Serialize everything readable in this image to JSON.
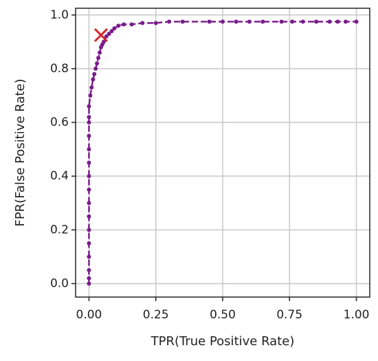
{
  "chart_data": {
    "type": "line",
    "x_label": "TPR(True Positive Rate)",
    "y_label": "FPR(False Positive Rate)",
    "xlim": [
      -0.05,
      1.05
    ],
    "ylim": [
      -0.05,
      1.025
    ],
    "xticks": [
      {
        "value": 0,
        "label": "0.00"
      },
      {
        "value": 0.25,
        "label": "0.25"
      },
      {
        "value": 0.5,
        "label": "0.50"
      },
      {
        "value": 0.75,
        "label": "0.75"
      },
      {
        "value": 1,
        "label": "1.00"
      }
    ],
    "yticks": [
      {
        "value": 0,
        "label": "0.0"
      },
      {
        "value": 0.2,
        "label": "0.2"
      },
      {
        "value": 0.4,
        "label": "0.4"
      },
      {
        "value": 0.6,
        "label": "0.6"
      },
      {
        "value": 0.8,
        "label": "0.8"
      },
      {
        "value": 1,
        "label": "1.0"
      }
    ],
    "grid": true,
    "series": [
      {
        "color": "#7b1c8c",
        "line_style": "dashed",
        "marker": "dot",
        "x": [
          0,
          0,
          0,
          0,
          0,
          0,
          0,
          0,
          0,
          0,
          0,
          0,
          0,
          0,
          0,
          0,
          0.005,
          0.01,
          0.015,
          0.02,
          0.025,
          0.03,
          0.035,
          0.04,
          0.045,
          0.05,
          0.055,
          0.065,
          0.075,
          0.085,
          0.095,
          0.11,
          0.13,
          0.16,
          0.2,
          0.25,
          0.3,
          0.35,
          0.45,
          0.5,
          0.55,
          0.6,
          0.65,
          0.72,
          0.76,
          0.8,
          0.85,
          0.9,
          0.93,
          0.96,
          1.0
        ],
        "values": [
          0,
          0.02,
          0.05,
          0.1,
          0.15,
          0.2,
          0.25,
          0.3,
          0.35,
          0.4,
          0.45,
          0.5,
          0.55,
          0.6,
          0.62,
          0.66,
          0.7,
          0.73,
          0.76,
          0.78,
          0.8,
          0.82,
          0.84,
          0.86,
          0.88,
          0.89,
          0.9,
          0.92,
          0.93,
          0.94,
          0.95,
          0.96,
          0.965,
          0.965,
          0.97,
          0.97,
          0.975,
          0.975,
          0.975,
          0.975,
          0.975,
          0.975,
          0.975,
          0.975,
          0.975,
          0.975,
          0.975,
          0.975,
          0.975,
          0.975,
          0.975
        ]
      },
      {
        "color": "#d62728",
        "marker": "x",
        "x": [
          0.045
        ],
        "values": [
          0.925
        ]
      }
    ]
  }
}
